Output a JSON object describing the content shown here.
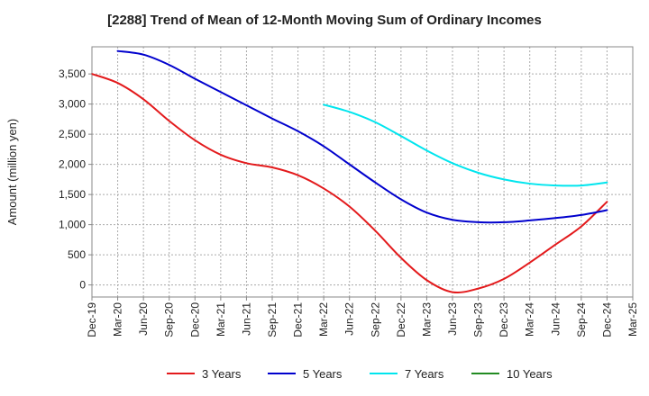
{
  "chart_data": {
    "type": "line",
    "title": "[2288]  Trend of Mean of 12-Month Moving Sum of Ordinary Incomes",
    "xlabel": "",
    "ylabel": "Amount (million yen)",
    "ylim": [
      -200,
      3950
    ],
    "yticks": [
      0,
      500,
      1000,
      1500,
      2000,
      2500,
      3000,
      3500
    ],
    "ytick_labels": [
      "0",
      "500",
      "1,000",
      "1,500",
      "2,000",
      "2,500",
      "3,000",
      "3,500"
    ],
    "x_categories": [
      "Dec-19",
      "Mar-20",
      "Jun-20",
      "Sep-20",
      "Dec-20",
      "Mar-21",
      "Jun-21",
      "Sep-21",
      "Dec-21",
      "Mar-22",
      "Jun-22",
      "Sep-22",
      "Dec-22",
      "Mar-23",
      "Jun-23",
      "Sep-23",
      "Dec-23",
      "Mar-24",
      "Jun-24",
      "Sep-24",
      "Dec-24",
      "Mar-25"
    ],
    "grid": true,
    "legend_position": "bottom",
    "series": [
      {
        "name": "3 Years",
        "color": "#e31a1c",
        "x": [
          "Dec-19",
          "Mar-20",
          "Jun-20",
          "Sep-20",
          "Dec-20",
          "Mar-21",
          "Jun-21",
          "Sep-21",
          "Dec-21",
          "Mar-22",
          "Jun-22",
          "Sep-22",
          "Dec-22",
          "Mar-23",
          "Jun-23",
          "Sep-23",
          "Dec-23",
          "Mar-24",
          "Jun-24",
          "Sep-24",
          "Dec-24"
        ],
        "values": [
          3500,
          3350,
          3080,
          2720,
          2400,
          2160,
          2020,
          1950,
          1820,
          1600,
          1300,
          900,
          450,
          80,
          -120,
          -60,
          100,
          370,
          670,
          970,
          1380
        ]
      },
      {
        "name": "5 Years",
        "color": "#0000cd",
        "x": [
          "Mar-20",
          "Jun-20",
          "Sep-20",
          "Dec-20",
          "Mar-21",
          "Jun-21",
          "Sep-21",
          "Dec-21",
          "Mar-22",
          "Jun-22",
          "Sep-22",
          "Dec-22",
          "Mar-23",
          "Jun-23",
          "Sep-23",
          "Dec-23",
          "Mar-24",
          "Jun-24",
          "Sep-24",
          "Dec-24"
        ],
        "values": [
          3880,
          3820,
          3650,
          3420,
          3200,
          2980,
          2760,
          2550,
          2300,
          2000,
          1700,
          1420,
          1200,
          1080,
          1040,
          1040,
          1070,
          1110,
          1160,
          1240
        ]
      },
      {
        "name": "7 Years",
        "color": "#00e5ee",
        "x": [
          "Mar-22",
          "Jun-22",
          "Sep-22",
          "Dec-22",
          "Mar-23",
          "Jun-23",
          "Sep-23",
          "Dec-23",
          "Mar-24",
          "Jun-24",
          "Sep-24",
          "Dec-24"
        ],
        "values": [
          2990,
          2870,
          2700,
          2470,
          2230,
          2020,
          1860,
          1750,
          1680,
          1650,
          1650,
          1700
        ]
      },
      {
        "name": "10 Years",
        "color": "#228b22",
        "x": [],
        "values": []
      }
    ]
  }
}
